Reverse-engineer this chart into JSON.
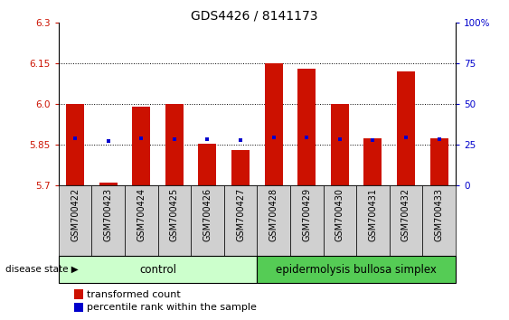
{
  "title": "GDS4426 / 8141173",
  "samples": [
    "GSM700422",
    "GSM700423",
    "GSM700424",
    "GSM700425",
    "GSM700426",
    "GSM700427",
    "GSM700428",
    "GSM700429",
    "GSM700430",
    "GSM700431",
    "GSM700432",
    "GSM700433"
  ],
  "bar_values": [
    6.0,
    5.71,
    5.99,
    6.0,
    5.855,
    5.83,
    6.15,
    6.13,
    6.0,
    5.875,
    6.12,
    5.875
  ],
  "blue_dot_values": [
    5.875,
    5.865,
    5.875,
    5.872,
    5.87,
    5.868,
    5.878,
    5.878,
    5.872,
    5.868,
    5.878,
    5.872
  ],
  "y_min": 5.7,
  "y_max": 6.3,
  "y_ticks_left": [
    5.7,
    5.85,
    6.0,
    6.15,
    6.3
  ],
  "y_ticks_right": [
    0,
    25,
    50,
    75,
    100
  ],
  "bar_color": "#cc1100",
  "dot_color": "#0000cc",
  "bar_width": 0.55,
  "control_label": "control",
  "disease_label": "epidermolysis bullosa simplex",
  "disease_state_label": "disease state",
  "legend1": "transformed count",
  "legend2": "percentile rank within the sample",
  "control_bg": "#ccffcc",
  "disease_bg": "#55cc55",
  "label_bg": "#d0d0d0",
  "title_fontsize": 10,
  "tick_fontsize": 7.5,
  "label_fontsize": 7,
  "band_fontsize": 8.5,
  "legend_fontsize": 8
}
